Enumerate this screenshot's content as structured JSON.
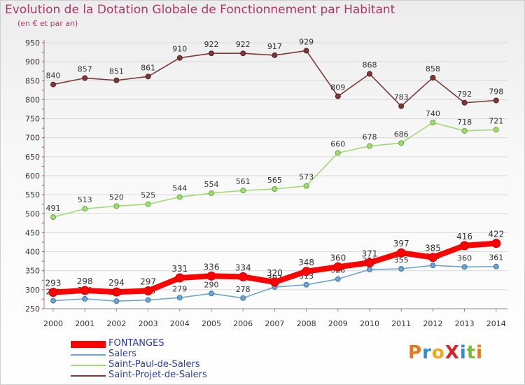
{
  "title": "Evolution de la Dotation Globale de Fonctionnement par Habitant",
  "subtitle": "(en € et par an)",
  "logo": {
    "text": "ProXiti",
    "letter_colors": [
      "#e8761a",
      "#2f8fd0",
      "#f2a81d",
      "#d8232a",
      "#2f8fd0",
      "#7dbb30",
      "#e8761a"
    ]
  },
  "colors": {
    "FONTANGES": "#ff0000",
    "Salers": "#6fa3cc",
    "Saint-Paul-de-Salers": "#a3d977",
    "Saint-Projet-de-Salers": "#7a3a3a",
    "axis_text": "#333333",
    "grid": "#d8d8d8",
    "title": "#b0366a",
    "legend_text": "#2b3fa6"
  },
  "chart_data": {
    "type": "line",
    "title": "Evolution de la Dotation Globale de Fonctionnement par Habitant",
    "subtitle": "(en € et par an)",
    "xlabel": "",
    "ylabel": "",
    "categories": [
      "2000",
      "2001",
      "2002",
      "2003",
      "2004",
      "2005",
      "2006",
      "2007",
      "2008",
      "2009",
      "2010",
      "2011",
      "2012",
      "2013",
      "2014"
    ],
    "ylim": [
      250,
      950
    ],
    "yticks": [
      250,
      300,
      350,
      400,
      450,
      500,
      550,
      600,
      650,
      700,
      750,
      800,
      850,
      900,
      950
    ],
    "grid": true,
    "legend_position": "bottom-left",
    "series": [
      {
        "name": "Saint-Projet-de-Salers",
        "values": [
          840,
          857,
          851,
          861,
          910,
          922,
          922,
          917,
          929,
          809,
          868,
          783,
          858,
          792,
          798
        ],
        "labels_visible": true
      },
      {
        "name": "Saint-Paul-de-Salers",
        "values": [
          491,
          513,
          520,
          525,
          544,
          554,
          561,
          565,
          573,
          660,
          678,
          686,
          740,
          718,
          721
        ],
        "labels_visible": true
      },
      {
        "name": "Salers",
        "values": [
          271,
          276,
          270,
          273,
          279,
          290,
          278,
          307,
          313,
          328,
          353,
          355,
          364,
          360,
          361
        ],
        "labels_visible": true
      },
      {
        "name": "FONTANGES",
        "values": [
          293,
          298,
          294,
          297,
          331,
          336,
          334,
          320,
          348,
          360,
          371,
          397,
          385,
          416,
          422
        ],
        "labels_visible": true
      }
    ]
  }
}
